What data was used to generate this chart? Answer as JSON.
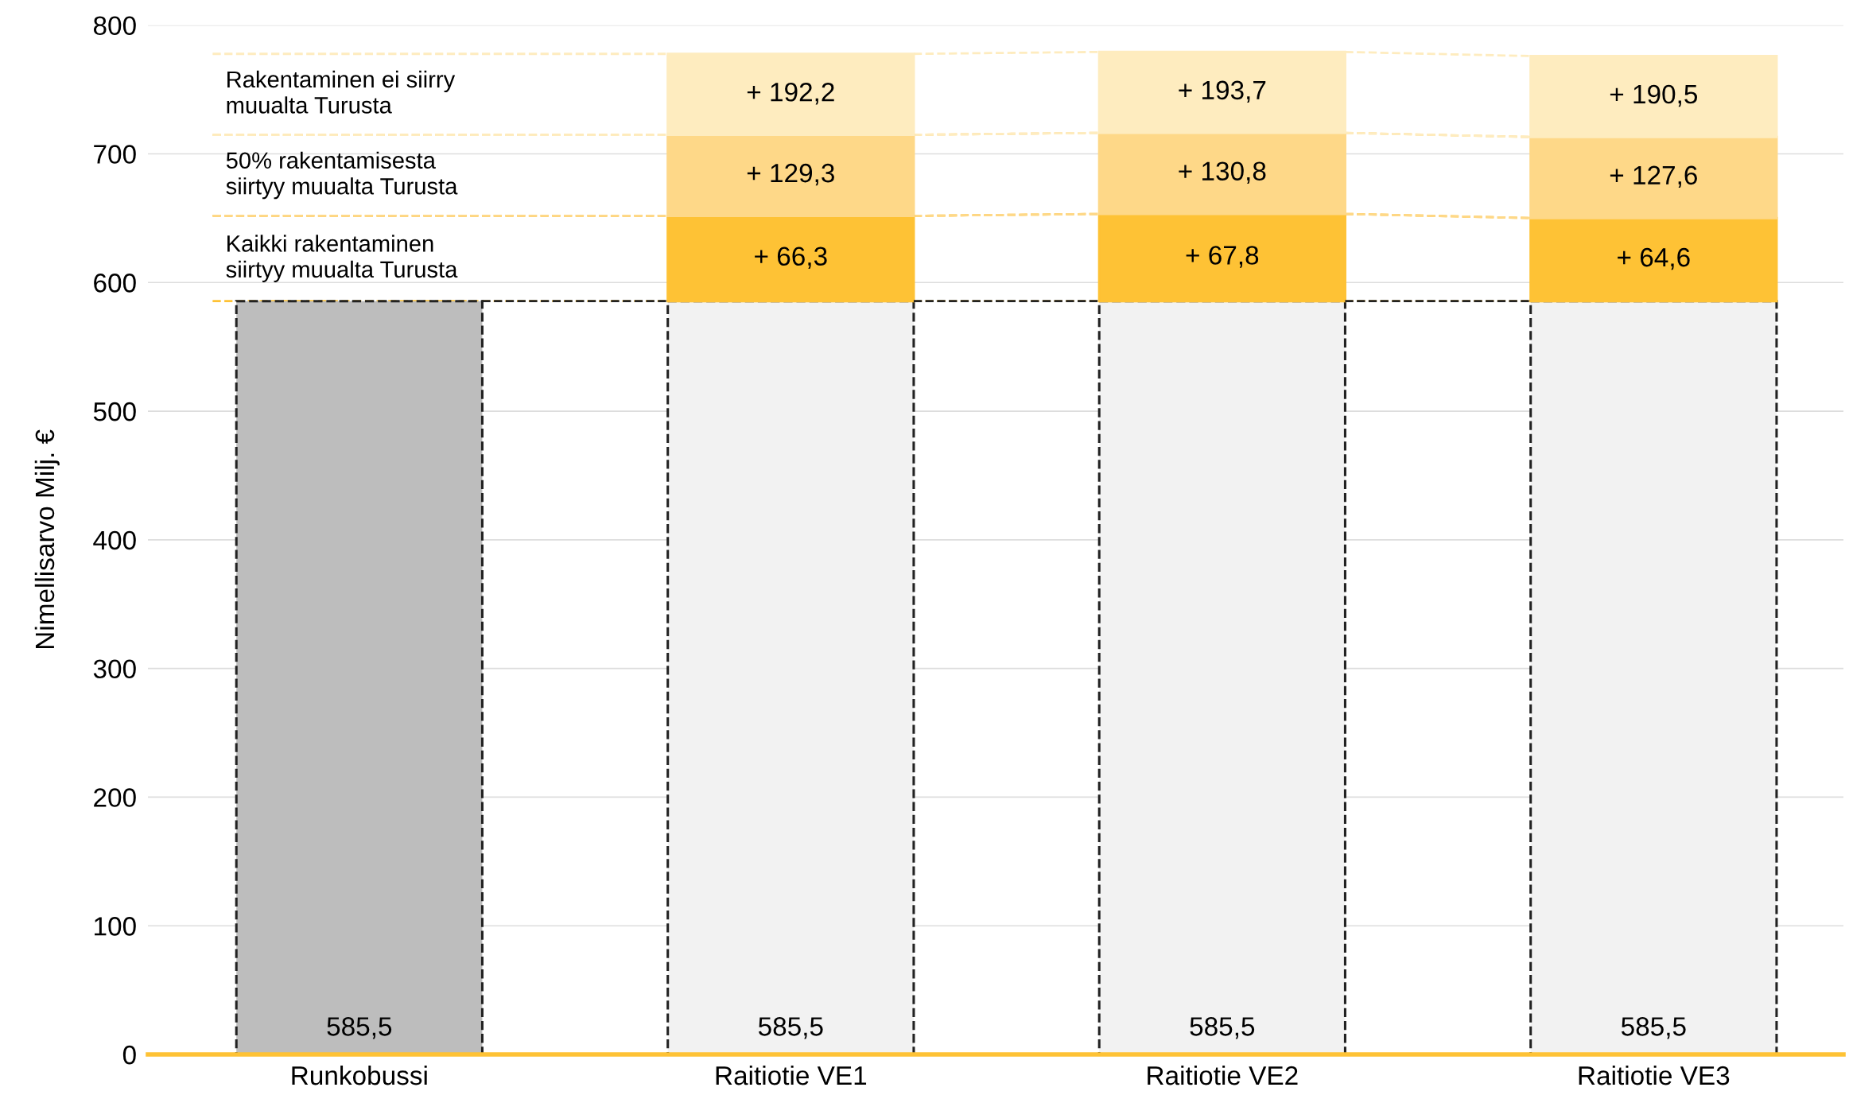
{
  "chart_data": {
    "type": "bar",
    "stacked": true,
    "ylabel": "Nimellisarvo Milj. €",
    "categories": [
      "Runkobussi",
      "Raitiotie VE1",
      "Raitiotie VE2",
      "Raitiotie VE3"
    ],
    "ylim": [
      0,
      800
    ],
    "yticks": [
      0,
      100,
      200,
      300,
      400,
      500,
      600,
      700,
      800
    ],
    "grid": "y",
    "legend": false,
    "series": [
      {
        "colors": [
          "#bdbdbd",
          "#f2f2f2",
          "#f2f2f2",
          "#f2f2f2"
        ],
        "values": [
          585.5,
          585.5,
          585.5,
          585.5
        ],
        "value_labels": [
          "585,5",
          "585,5",
          "585,5",
          "585,5"
        ],
        "line_style": "dashed"
      },
      {
        "name": "Kaikki rakentaminen\nsiirtyy muualta Turusta",
        "color": "#fec235",
        "values": [
          null,
          66.3,
          67.8,
          64.6
        ],
        "value_labels": [
          null,
          "+ 66,3",
          "+ 67,8",
          "+ 64,6"
        ]
      },
      {
        "name": "50% rakentamisesta\nsiirtyy muualta Turusta",
        "color": "#fed888",
        "values": [
          null,
          63.0,
          63.0,
          63.0
        ]
      },
      {
        "name": "Rakentaminen ei siirry\nmuualta Turusta",
        "color": "#feecbf",
        "values": [
          null,
          62.9,
          62.9,
          62.9
        ]
      }
    ],
    "annotations": [
      "+ 129,3",
      "+ 130,8",
      "+ 127,6",
      "+ 192,2",
      "+ 193,7",
      "+ 190,5"
    ]
  }
}
